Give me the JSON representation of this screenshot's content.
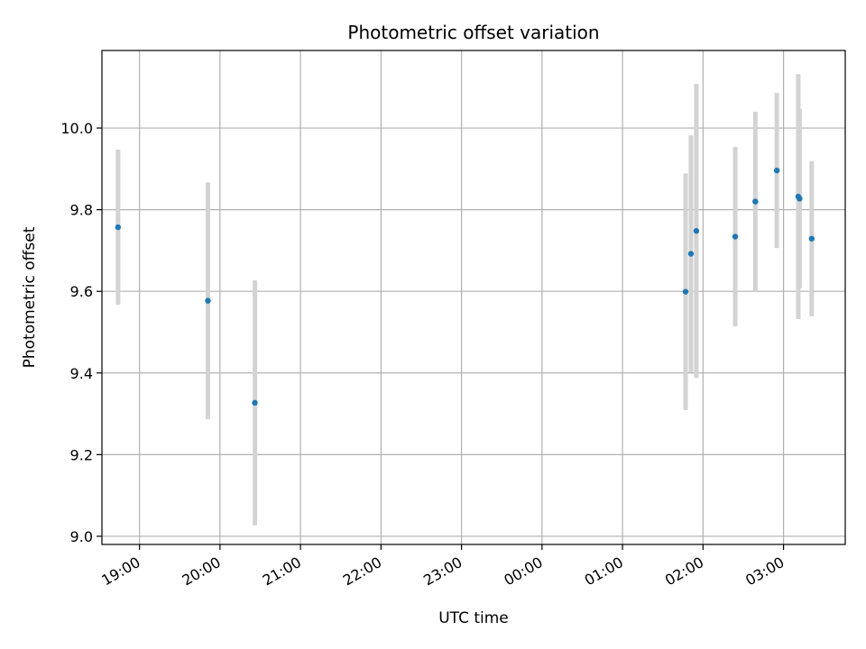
{
  "chart_data": {
    "type": "scatter",
    "title": "Photometric offset variation",
    "xlabel": "UTC time",
    "ylabel": "Photometric offset",
    "xlim": [
      "2000-01-01T18:32:00",
      "2000-01-02T03:46:00"
    ],
    "ylim": [
      8.98,
      10.19
    ],
    "grid": true,
    "xticks": [
      {
        "t": "2000-01-01T19:00:00",
        "label": "19:00"
      },
      {
        "t": "2000-01-01T20:00:00",
        "label": "20:00"
      },
      {
        "t": "2000-01-01T21:00:00",
        "label": "21:00"
      },
      {
        "t": "2000-01-01T22:00:00",
        "label": "22:00"
      },
      {
        "t": "2000-01-01T23:00:00",
        "label": "23:00"
      },
      {
        "t": "2000-01-02T00:00:00",
        "label": "00:00"
      },
      {
        "t": "2000-01-02T01:00:00",
        "label": "01:00"
      },
      {
        "t": "2000-01-02T02:00:00",
        "label": "02:00"
      },
      {
        "t": "2000-01-02T03:00:00",
        "label": "03:00"
      }
    ],
    "yticks": [
      {
        "v": 9.0,
        "label": "9.0"
      },
      {
        "v": 9.2,
        "label": "9.2"
      },
      {
        "v": 9.4,
        "label": "9.4"
      },
      {
        "v": 9.6,
        "label": "9.6"
      },
      {
        "v": 9.8,
        "label": "9.8"
      },
      {
        "v": 10.0,
        "label": "10.0"
      }
    ],
    "series": [
      {
        "marker_color": "#1f77b4",
        "errorbar_color": "#d3d3d3",
        "points": [
          {
            "t": "2000-01-01T18:44:00",
            "y": 9.757,
            "err": 0.19
          },
          {
            "t": "2000-01-01T19:51:00",
            "y": 9.577,
            "err": 0.29
          },
          {
            "t": "2000-01-01T20:26:00",
            "y": 9.327,
            "err": 0.3
          },
          {
            "t": "2000-01-02T01:47:00",
            "y": 9.599,
            "err": 0.29
          },
          {
            "t": "2000-01-02T01:51:00",
            "y": 9.692,
            "err": 0.29
          },
          {
            "t": "2000-01-02T01:55:00",
            "y": 9.748,
            "err": 0.36
          },
          {
            "t": "2000-01-02T02:24:00",
            "y": 9.734,
            "err": 0.22
          },
          {
            "t": "2000-01-02T02:39:00",
            "y": 9.82,
            "err": 0.22
          },
          {
            "t": "2000-01-02T02:55:00",
            "y": 9.896,
            "err": 0.19
          },
          {
            "t": "2000-01-02T03:11:00",
            "y": 9.832,
            "err": 0.3
          },
          {
            "t": "2000-01-02T03:12:00",
            "y": 9.827,
            "err": 0.22
          },
          {
            "t": "2000-01-02T03:21:00",
            "y": 9.729,
            "err": 0.19
          }
        ]
      }
    ]
  }
}
